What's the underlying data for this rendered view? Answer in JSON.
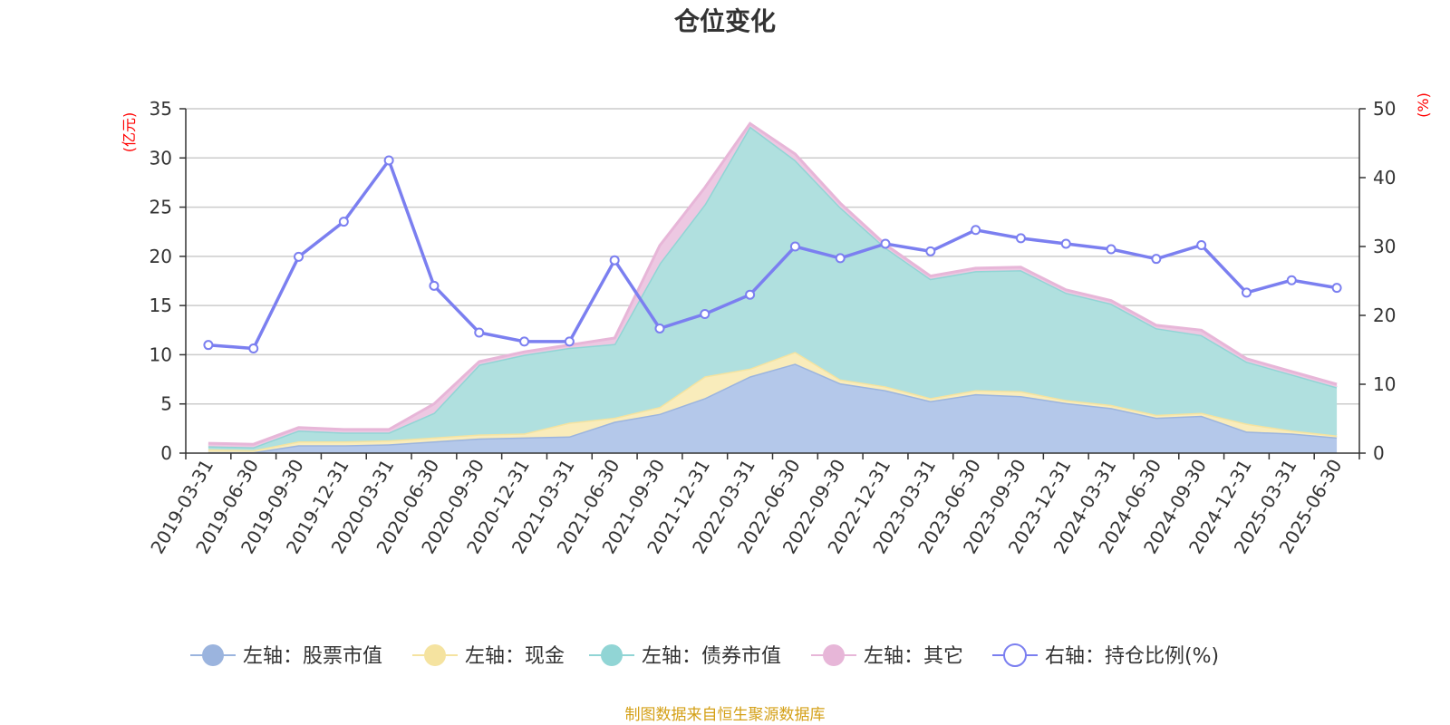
{
  "chart_data": {
    "type": "area",
    "title": "仓位变化",
    "left_axis_unit": "(亿元)",
    "right_axis_unit": "(%)",
    "left_ylim": [
      0,
      35
    ],
    "left_ticks": [
      "0",
      "5",
      "10",
      "15",
      "20",
      "25",
      "30",
      "35"
    ],
    "right_ylim": [
      0,
      50
    ],
    "right_ticks": [
      "0",
      "10",
      "20",
      "30",
      "40",
      "50"
    ],
    "grid": true,
    "legend_position": "bottom",
    "categories": [
      "2019-03-31",
      "2019-06-30",
      "2019-09-30",
      "2019-12-31",
      "2020-03-31",
      "2020-06-30",
      "2020-09-30",
      "2020-12-31",
      "2021-03-31",
      "2021-06-30",
      "2021-09-30",
      "2021-12-31",
      "2022-03-31",
      "2022-06-30",
      "2022-09-30",
      "2022-12-31",
      "2023-03-31",
      "2023-06-30",
      "2023-09-30",
      "2023-12-31",
      "2024-03-31",
      "2024-06-30",
      "2024-09-30",
      "2024-12-31",
      "2025-03-31",
      "2025-06-30"
    ],
    "series": [
      {
        "name": "左轴：股票市值",
        "axis": "left",
        "kind": "stacked-area",
        "color": "#9bb4de",
        "fill": "#b4c8ea",
        "values": [
          0.1,
          0.1,
          0.8,
          0.8,
          0.9,
          1.2,
          1.5,
          1.6,
          1.7,
          3.2,
          4.0,
          5.6,
          7.8,
          9.1,
          7.1,
          6.4,
          5.3,
          6.0,
          5.8,
          5.1,
          4.6,
          3.6,
          3.8,
          2.2,
          2.0,
          1.6
        ]
      },
      {
        "name": "左轴：现金",
        "axis": "left",
        "kind": "stacked-area",
        "color": "#f5e3a0",
        "fill": "#f9ecbb",
        "values": [
          0.3,
          0.2,
          0.4,
          0.4,
          0.4,
          0.4,
          0.4,
          0.4,
          1.4,
          0.4,
          0.7,
          2.2,
          0.8,
          1.2,
          0.4,
          0.4,
          0.3,
          0.4,
          0.5,
          0.3,
          0.3,
          0.3,
          0.3,
          0.8,
          0.3,
          0.2
        ]
      },
      {
        "name": "左轴：债券市值",
        "axis": "left",
        "kind": "stacked-area",
        "color": "#91d5d5",
        "fill": "#b0e0df",
        "values": [
          0.3,
          0.3,
          1.1,
          0.9,
          0.8,
          2.5,
          7.1,
          8.0,
          7.6,
          7.5,
          14.6,
          17.5,
          24.6,
          19.5,
          17.5,
          14.1,
          12.1,
          12.1,
          12.3,
          10.9,
          10.3,
          8.8,
          7.9,
          6.3,
          5.7,
          4.9
        ]
      },
      {
        "name": "左轴：其它",
        "axis": "left",
        "kind": "stacked-area",
        "color": "#e7b6d8",
        "fill": "#edc8e2",
        "values": [
          0.3,
          0.3,
          0.3,
          0.3,
          0.3,
          0.9,
          0.3,
          0.3,
          0.3,
          0.6,
          1.8,
          1.7,
          0.3,
          0.6,
          0.4,
          0.3,
          0.3,
          0.3,
          0.3,
          0.3,
          0.3,
          0.3,
          0.5,
          0.3,
          0.3,
          0.3
        ]
      },
      {
        "name": "右轴：持仓比例(%)",
        "axis": "right",
        "kind": "line",
        "color": "#7b7ff0",
        "values": [
          15.7,
          15.2,
          28.5,
          33.6,
          42.5,
          24.3,
          17.5,
          16.2,
          16.2,
          28.0,
          18.1,
          20.2,
          23.0,
          30.0,
          28.3,
          30.4,
          29.3,
          32.4,
          31.2,
          30.4,
          29.6,
          28.2,
          30.2,
          23.3,
          25.1,
          24.0
        ]
      }
    ],
    "source_note": "制图数据来自恒生聚源数据库"
  }
}
